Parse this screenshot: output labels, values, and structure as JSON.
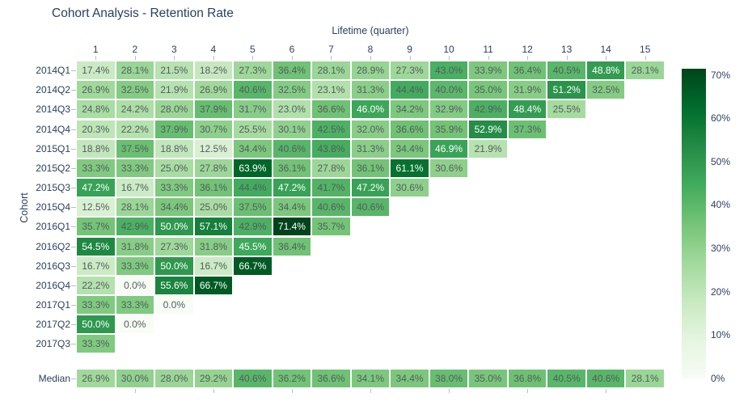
{
  "title": "Cohort Analysis - Retention Rate",
  "colors": {
    "label_color": "#2a3f5f",
    "tick_color": "#b9bec6",
    "cell_text_dark": "#555b61",
    "cell_text_light": "#ffffff",
    "background": "#ffffff"
  },
  "chart_data": {
    "type": "heatmap",
    "title": "Cohort Analysis - Retention Rate",
    "xlabel": "Lifetime (quarter)",
    "ylabel": "Cohort",
    "x_ticks": [
      1,
      2,
      3,
      4,
      5,
      6,
      7,
      8,
      9,
      10,
      11,
      12,
      13,
      14,
      15
    ],
    "value_format": "percent_one_decimal",
    "rows": [
      {
        "label": "2014Q1",
        "values": [
          17.4,
          28.1,
          21.5,
          18.2,
          27.3,
          36.4,
          28.1,
          28.9,
          27.3,
          43.0,
          33.9,
          36.4,
          40.5,
          48.8,
          28.1
        ]
      },
      {
        "label": "2014Q2",
        "values": [
          26.9,
          32.5,
          21.9,
          26.9,
          40.6,
          32.5,
          23.1,
          31.3,
          44.4,
          40.0,
          35.0,
          31.9,
          51.2,
          32.5
        ]
      },
      {
        "label": "2014Q3",
        "values": [
          24.8,
          24.2,
          28.0,
          37.9,
          31.7,
          23.0,
          36.6,
          46.0,
          34.2,
          32.9,
          42.9,
          48.4,
          25.5
        ]
      },
      {
        "label": "2014Q4",
        "values": [
          20.3,
          22.2,
          37.9,
          30.7,
          25.5,
          30.1,
          42.5,
          32.0,
          36.6,
          35.9,
          52.9,
          37.3
        ]
      },
      {
        "label": "2015Q1",
        "values": [
          18.8,
          37.5,
          18.8,
          12.5,
          34.4,
          40.6,
          43.8,
          31.3,
          34.4,
          46.9,
          21.9
        ]
      },
      {
        "label": "2015Q2",
        "values": [
          33.3,
          33.3,
          25.0,
          27.8,
          63.9,
          36.1,
          27.8,
          36.1,
          61.1,
          30.6
        ]
      },
      {
        "label": "2015Q3",
        "values": [
          47.2,
          16.7,
          33.3,
          36.1,
          44.4,
          47.2,
          41.7,
          47.2,
          30.6
        ]
      },
      {
        "label": "2015Q4",
        "values": [
          12.5,
          28.1,
          34.4,
          25.0,
          37.5,
          34.4,
          40.6,
          40.6
        ]
      },
      {
        "label": "2016Q1",
        "values": [
          35.7,
          42.9,
          50.0,
          57.1,
          42.9,
          71.4,
          35.7
        ]
      },
      {
        "label": "2016Q2",
        "values": [
          54.5,
          31.8,
          27.3,
          31.8,
          45.5,
          36.4
        ]
      },
      {
        "label": "2016Q3",
        "values": [
          16.7,
          33.3,
          50.0,
          16.7,
          66.7
        ]
      },
      {
        "label": "2016Q4",
        "values": [
          22.2,
          0.0,
          55.6,
          66.7
        ]
      },
      {
        "label": "2017Q1",
        "values": [
          33.3,
          33.3,
          0.0
        ]
      },
      {
        "label": "2017Q2",
        "values": [
          50.0,
          0.0
        ]
      },
      {
        "label": "2017Q3",
        "values": [
          33.3
        ]
      }
    ],
    "median_row": {
      "label": "Median",
      "values": [
        26.9,
        30.0,
        28.0,
        29.2,
        40.6,
        36.2,
        36.6,
        34.1,
        34.4,
        38.0,
        35.0,
        36.8,
        40.5,
        40.6,
        28.1
      ]
    },
    "colorbar": {
      "tick_labels": [
        "0%",
        "10%",
        "20%",
        "30%",
        "40%",
        "50%",
        "60%",
        "70%"
      ],
      "tick_values": [
        0,
        10,
        20,
        30,
        40,
        50,
        60,
        70
      ],
      "zmin": 0,
      "zmax": 71.4,
      "colorscale_name": "Greens",
      "colorscale": [
        [
          0.0,
          "#f7fcf5"
        ],
        [
          0.125,
          "#e5f5e0"
        ],
        [
          0.25,
          "#c7e9c0"
        ],
        [
          0.375,
          "#a1d99b"
        ],
        [
          0.5,
          "#74c476"
        ],
        [
          0.625,
          "#41ab5d"
        ],
        [
          0.75,
          "#238b45"
        ],
        [
          0.875,
          "#006d2c"
        ],
        [
          1.0,
          "#00441b"
        ]
      ],
      "legend_position": "right"
    },
    "grid": false
  }
}
